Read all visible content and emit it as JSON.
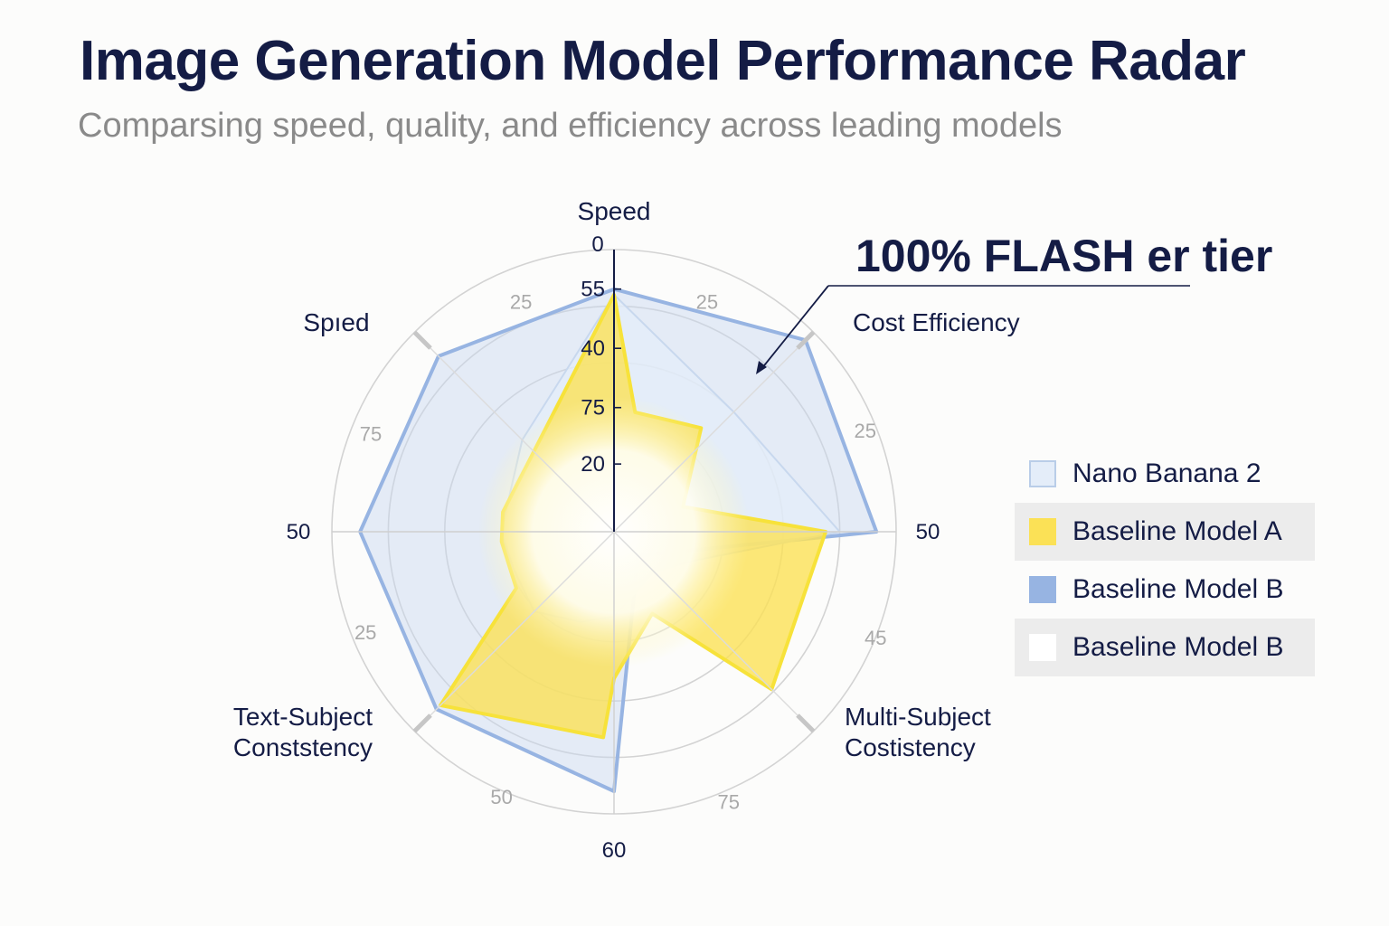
{
  "title": "Image Generation Model Performance Radar",
  "subtitle": "Comparsing speed, quality, and efficiency across leading models",
  "annotation": "100% FLASH er tier",
  "colors": {
    "title": "#141c45",
    "subtitle": "#8a8a8a",
    "nano_banana_2": "#e4edf9",
    "baseline_a": "#fbe156",
    "baseline_b": "#97b4e2",
    "baseline_b_alt": "#ffffff"
  },
  "legend": [
    {
      "label": "Nano Banana 2",
      "color": "#e4edf9",
      "border": "#b9cde8"
    },
    {
      "label": "Baseline Model A",
      "color": "#fbe156",
      "border": "#fbe156"
    },
    {
      "label": "Baseline Model B",
      "color": "#97b4e2",
      "border": "#97b4e2"
    },
    {
      "label": "Baseline Model B",
      "color": "#ffffff",
      "border": "#ffffff"
    }
  ],
  "chart_data": {
    "type": "radar",
    "title": "Image Generation Model Performance Radar",
    "subtitle": "Comparsing speed, quality, and efficiency across leading models",
    "axis_labels": {
      "top": "Speed",
      "top_left": "Spıed",
      "top_right": "Cost Efficiency",
      "bottom_left": "Text-Subject Conststency",
      "bottom_right": "Multi-Subject Costistency"
    },
    "spoke_end_ticks": {
      "top": "0",
      "left": "50",
      "right": "50",
      "bottom": "60"
    },
    "vertical_axis_ticks": [
      "55",
      "40",
      "75",
      "20"
    ],
    "ring_ticks": [
      {
        "label": "25",
        "position": "upper-left"
      },
      {
        "label": "25",
        "position": "upper-right"
      },
      {
        "label": "75",
        "position": "left-upper"
      },
      {
        "label": "25",
        "position": "right-upper"
      },
      {
        "label": "25",
        "position": "left-lower"
      },
      {
        "label": "45",
        "position": "right-lower"
      },
      {
        "label": "50",
        "position": "lower-left"
      },
      {
        "label": "75",
        "position": "lower-right"
      }
    ],
    "scale": [
      0,
      100
    ],
    "grid": true,
    "legend_position": "right",
    "series": [
      {
        "name": "Baseline Model B",
        "color": "#97b4e2",
        "points": [
          [
            0,
            86
          ],
          [
            45,
            96
          ],
          [
            90,
            93
          ],
          [
            135,
            12
          ],
          [
            180,
            92
          ],
          [
            225,
            89
          ],
          [
            270,
            90
          ],
          [
            315,
            88
          ]
        ]
      },
      {
        "name": "Nano Banana 2",
        "color": "#e4edf9",
        "points": [
          [
            0,
            84
          ],
          [
            45,
            60
          ],
          [
            90,
            80
          ],
          [
            110,
            30
          ],
          [
            135,
            20
          ],
          [
            180,
            30
          ],
          [
            200,
            34
          ],
          [
            225,
            40
          ],
          [
            250,
            38
          ],
          [
            270,
            40
          ],
          [
            315,
            46
          ]
        ]
      },
      {
        "name": "Baseline Model A",
        "color": "#fbe156",
        "points": [
          [
            0,
            84
          ],
          [
            10,
            43
          ],
          [
            40,
            48
          ],
          [
            70,
            26
          ],
          [
            90,
            75
          ],
          [
            135,
            79
          ],
          [
            155,
            32
          ],
          [
            180,
            52
          ],
          [
            183,
            73
          ],
          [
            225,
            87
          ],
          [
            240,
            40
          ],
          [
            265,
            40
          ],
          [
            280,
            40
          ],
          [
            0,
            84
          ]
        ]
      }
    ]
  }
}
